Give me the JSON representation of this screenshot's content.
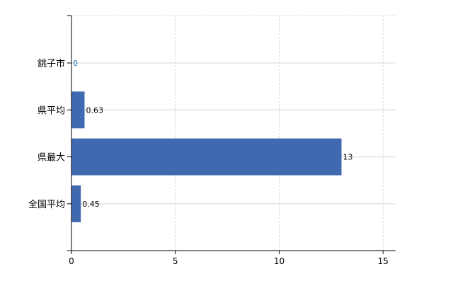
{
  "chart_data": {
    "type": "bar",
    "orientation": "horizontal",
    "categories": [
      "銚子市",
      "県平均",
      "県最大",
      "全国平均"
    ],
    "values": [
      0,
      0.63,
      13,
      0.45
    ],
    "data_labels": [
      "0",
      "0.63",
      "13",
      "0.45"
    ],
    "title": "",
    "xlabel": "",
    "ylabel": "",
    "xlim": [
      0,
      15.6
    ],
    "xticks": [
      0,
      5,
      10,
      15
    ],
    "xtick_labels": [
      "0",
      "5",
      "10",
      "15"
    ],
    "grid": true,
    "legend": "none",
    "colors": {
      "bar": "#4169b0",
      "grid": "#d0d8d8",
      "axis": "#000000",
      "zero_label": "#1a6fc0"
    }
  }
}
